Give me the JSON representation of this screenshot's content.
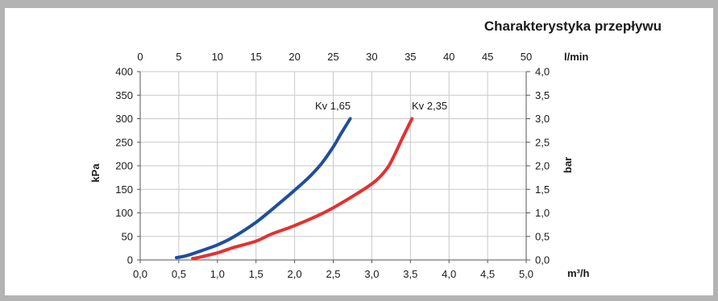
{
  "chart_data": {
    "type": "line",
    "title": "Charakterystyka przepływu",
    "x_bottom": {
      "label": "m³/h",
      "range": [
        0,
        5
      ],
      "ticks": [
        "0,0",
        "0,5",
        "1,0",
        "1,5",
        "2,0",
        "2,5",
        "3,0",
        "3,5",
        "4,0",
        "4,5",
        "5,0"
      ]
    },
    "x_top": {
      "label": "l/min",
      "range": [
        0,
        50
      ],
      "ticks": [
        "0",
        "5",
        "10",
        "15",
        "20",
        "25",
        "30",
        "35",
        "40",
        "45",
        "50"
      ]
    },
    "y_left": {
      "label": "kPa",
      "range": [
        0,
        400
      ],
      "ticks": [
        "0",
        "50",
        "100",
        "150",
        "200",
        "250",
        "300",
        "350",
        "400"
      ]
    },
    "y_right": {
      "label": "bar",
      "range": [
        0,
        4
      ],
      "ticks": [
        "0,0",
        "0,5",
        "1,0",
        "1,5",
        "2,0",
        "2,5",
        "3,0",
        "3,5",
        "4,0"
      ]
    },
    "grid": true,
    "series": [
      {
        "name": "Kv 1,65",
        "color": "#1f4e9c",
        "x": [
          0.47,
          0.6,
          0.8,
          1.0,
          1.2,
          1.5,
          1.8,
          2.0,
          2.2,
          2.35,
          2.5,
          2.6,
          2.72
        ],
        "y": [
          5,
          9,
          20,
          32,
          48,
          80,
          120,
          148,
          178,
          205,
          240,
          268,
          300
        ]
      },
      {
        "name": "Kv 2,35",
        "color": "#e63030",
        "x": [
          0.68,
          0.8,
          1.0,
          1.2,
          1.5,
          1.7,
          2.0,
          2.4,
          2.8,
          3.05,
          3.2,
          3.3,
          3.4,
          3.52
        ],
        "y": [
          3,
          7,
          15,
          26,
          40,
          55,
          73,
          102,
          140,
          168,
          195,
          225,
          260,
          300
        ]
      }
    ]
  }
}
